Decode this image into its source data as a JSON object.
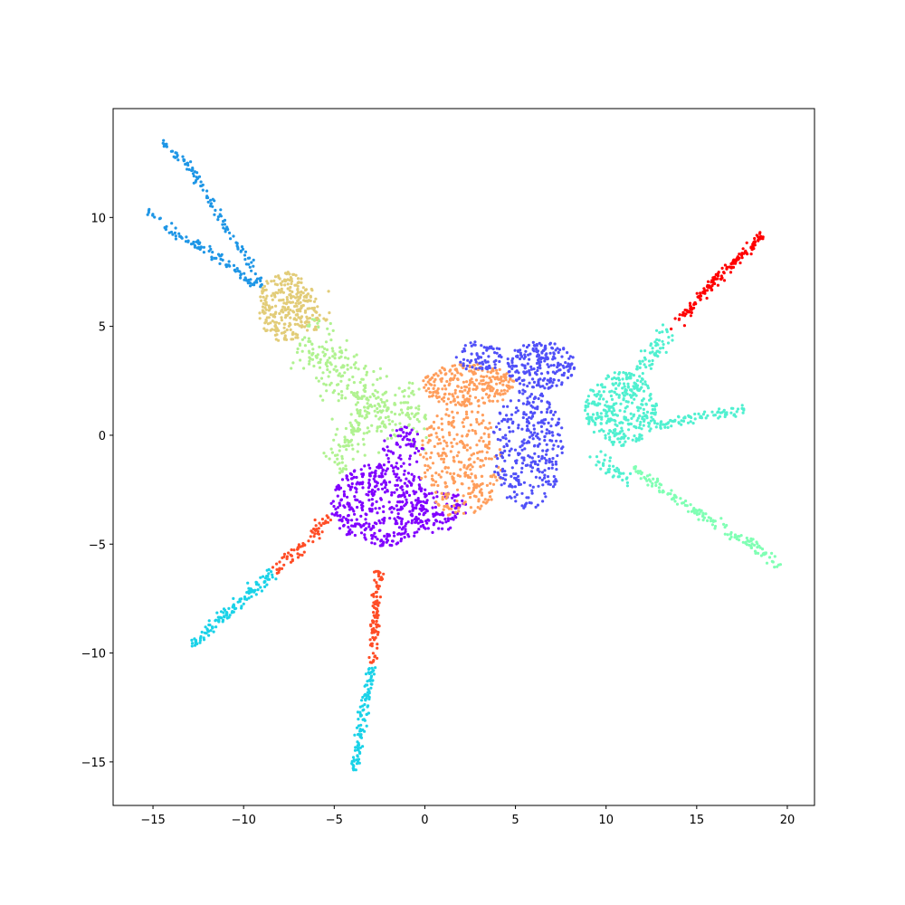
{
  "chart_data": {
    "type": "scatter",
    "title": "",
    "xlabel": "",
    "ylabel": "",
    "xlim": [
      -17.2,
      21.5
    ],
    "ylim": [
      -17.0,
      15.0
    ],
    "xticks": [
      -15,
      -10,
      -5,
      0,
      5,
      10,
      15,
      20
    ],
    "yticks": [
      -15,
      -10,
      -5,
      0,
      5,
      10
    ],
    "xtick_labels": [
      "−15",
      "−10",
      "−5",
      "0",
      "5",
      "10",
      "15",
      "20"
    ],
    "ytick_labels": [
      "−15",
      "−10",
      "−5",
      "0",
      "5",
      "10"
    ],
    "grid": false,
    "legend": "none",
    "clusters": [
      {
        "color": "#1e96e6",
        "type": "curve",
        "points": [
          [
            -14.6,
            13.5
          ],
          [
            -13.0,
            12.3
          ],
          [
            -11.6,
            10.5
          ],
          [
            -10.6,
            9.0
          ],
          [
            -9.6,
            7.8
          ],
          [
            -9.0,
            6.8
          ]
        ],
        "width": 0.12,
        "count": 110
      },
      {
        "color": "#1e96e6",
        "type": "curve",
        "points": [
          [
            -15.4,
            10.3
          ],
          [
            -13.6,
            9.2
          ],
          [
            -11.8,
            8.4
          ],
          [
            -10.4,
            7.6
          ],
          [
            -9.3,
            6.9
          ]
        ],
        "width": 0.12,
        "count": 100
      },
      {
        "color": "#e2cc78",
        "type": "ellipse",
        "cx": -7.7,
        "cy": 5.9,
        "rx": 1.5,
        "ry": 1.6,
        "count": 240
      },
      {
        "color": "#e2cc78",
        "type": "curve",
        "points": [
          [
            -6.8,
            6.5
          ],
          [
            -6.1,
            5.7
          ],
          [
            -5.8,
            4.9
          ]
        ],
        "width": 0.45,
        "count": 60
      },
      {
        "color": "#b0f290",
        "type": "curve",
        "points": [
          [
            -6.8,
            4.4
          ],
          [
            -5.2,
            3.6
          ],
          [
            -4.0,
            2.2
          ],
          [
            -2.6,
            1.0
          ],
          [
            -1.2,
            0.9
          ],
          [
            0.0,
            1.3
          ]
        ],
        "width": 0.7,
        "count": 320
      },
      {
        "color": "#b0f290",
        "type": "curve",
        "points": [
          [
            -3.3,
            0.8
          ],
          [
            -4.3,
            -0.4
          ],
          [
            -5.1,
            -1.4
          ]
        ],
        "width": 0.4,
        "count": 80
      },
      {
        "color": "#8000ff",
        "type": "ellipse",
        "cx": -2.4,
        "cy": -3.2,
        "rx": 2.8,
        "ry": 1.9,
        "count": 420
      },
      {
        "color": "#8000ff",
        "type": "ellipse",
        "cx": 0.8,
        "cy": -3.5,
        "rx": 1.6,
        "ry": 1.0,
        "count": 90
      },
      {
        "color": "#8000ff",
        "type": "ellipse",
        "cx": -1.2,
        "cy": -0.6,
        "rx": 1.1,
        "ry": 1.0,
        "count": 60
      },
      {
        "color": "#ff9e5c",
        "type": "ellipse",
        "cx": 2.4,
        "cy": 2.3,
        "rx": 2.6,
        "ry": 1.0,
        "count": 260
      },
      {
        "color": "#ff9e5c",
        "type": "ellipse",
        "cx": 2.0,
        "cy": -1.2,
        "rx": 2.3,
        "ry": 2.6,
        "count": 300
      },
      {
        "color": "#5050f8",
        "type": "ellipse",
        "cx": 6.4,
        "cy": 3.2,
        "rx": 1.9,
        "ry": 1.1,
        "count": 220
      },
      {
        "color": "#5050f8",
        "type": "ellipse",
        "cx": 5.7,
        "cy": -0.6,
        "rx": 2.0,
        "ry": 2.8,
        "count": 320
      },
      {
        "color": "#5050f8",
        "type": "ellipse",
        "cx": 3.0,
        "cy": 3.6,
        "rx": 1.3,
        "ry": 0.7,
        "count": 70
      },
      {
        "color": "#50f0d0",
        "type": "ellipse",
        "cx": 10.8,
        "cy": 1.2,
        "rx": 2.0,
        "ry": 1.7,
        "count": 320
      },
      {
        "color": "#50f0d0",
        "type": "curve",
        "points": [
          [
            11.4,
            2.2
          ],
          [
            12.6,
            3.8
          ],
          [
            13.5,
            4.8
          ]
        ],
        "width": 0.25,
        "count": 70
      },
      {
        "color": "#50f0d0",
        "type": "curve",
        "points": [
          [
            12.7,
            0.4
          ],
          [
            14.6,
            0.8
          ],
          [
            16.5,
            1.0
          ],
          [
            17.6,
            1.2
          ]
        ],
        "width": 0.12,
        "count": 80
      },
      {
        "color": "#50f0d0",
        "type": "curve",
        "points": [
          [
            9.2,
            -0.8
          ],
          [
            10.2,
            -1.6
          ],
          [
            11.3,
            -2.0
          ]
        ],
        "width": 0.2,
        "count": 40
      },
      {
        "color": "#80ffb4",
        "type": "curve",
        "points": [
          [
            11.5,
            -1.5
          ],
          [
            13.5,
            -2.7
          ],
          [
            15.5,
            -3.8
          ],
          [
            17.6,
            -4.8
          ],
          [
            19.6,
            -6.0
          ]
        ],
        "width": 0.13,
        "count": 150
      },
      {
        "color": "#ff0000",
        "type": "curve",
        "points": [
          [
            13.6,
            4.8
          ],
          [
            15.2,
            6.4
          ],
          [
            17.0,
            7.9
          ],
          [
            18.6,
            9.2
          ]
        ],
        "width": 0.12,
        "count": 160
      },
      {
        "color": "#ff4d26",
        "type": "curve",
        "points": [
          [
            -5.3,
            -3.7
          ],
          [
            -6.6,
            -5.0
          ],
          [
            -8.3,
            -6.2
          ]
        ],
        "width": 0.15,
        "count": 70
      },
      {
        "color": "#1ad2e8",
        "type": "curve",
        "points": [
          [
            -8.4,
            -6.3
          ],
          [
            -10.4,
            -7.8
          ],
          [
            -12.9,
            -9.6
          ]
        ],
        "width": 0.15,
        "count": 130
      },
      {
        "color": "#ff4d26",
        "type": "curve",
        "points": [
          [
            -2.5,
            -6.2
          ],
          [
            -2.7,
            -8.5
          ],
          [
            -2.9,
            -10.5
          ]
        ],
        "width": 0.12,
        "count": 90
      },
      {
        "color": "#1ad2e8",
        "type": "curve",
        "points": [
          [
            -2.9,
            -10.6
          ],
          [
            -3.4,
            -12.8
          ],
          [
            -3.9,
            -15.5
          ]
        ],
        "width": 0.12,
        "count": 110
      }
    ]
  }
}
